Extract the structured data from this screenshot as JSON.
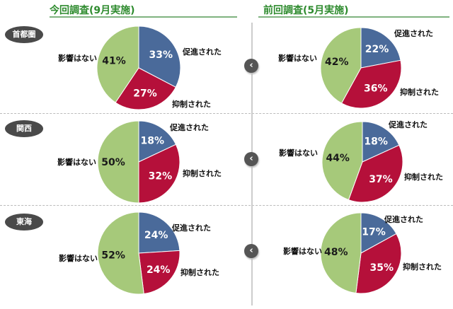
{
  "headers": {
    "current": "今回調査(9月実施)",
    "previous": "前回調査(5月実施)"
  },
  "regions": [
    "首都圏",
    "関西",
    "東海"
  ],
  "nav": {
    "chevron_icon": "chevron-left-icon"
  },
  "colors": {
    "promoted": "#4a6a9a",
    "suppressed": "#b5103a",
    "no_effect": "#a6c97a"
  },
  "chart_data": [
    {
      "type": "pie",
      "panel": "今回調査(9月実施)",
      "region": "首都圏",
      "labels": [
        "促進された",
        "抑制された",
        "影響はない"
      ],
      "values": [
        33,
        27,
        41
      ],
      "value_labels": [
        "33%",
        "27%",
        "41%"
      ]
    },
    {
      "type": "pie",
      "panel": "前回調査(5月実施)",
      "region": "首都圏",
      "labels": [
        "促進された",
        "抑制された",
        "影響はない"
      ],
      "values": [
        22,
        36,
        42
      ],
      "value_labels": [
        "22%",
        "36%",
        "42%"
      ]
    },
    {
      "type": "pie",
      "panel": "今回調査(9月実施)",
      "region": "関西",
      "labels": [
        "促進された",
        "抑制された",
        "影響はない"
      ],
      "values": [
        18,
        32,
        50
      ],
      "value_labels": [
        "18%",
        "32%",
        "50%"
      ]
    },
    {
      "type": "pie",
      "panel": "前回調査(5月実施)",
      "region": "関西",
      "labels": [
        "促進された",
        "抑制された",
        "影響はない"
      ],
      "values": [
        18,
        37,
        44
      ],
      "value_labels": [
        "18%",
        "37%",
        "44%"
      ]
    },
    {
      "type": "pie",
      "panel": "今回調査(9月実施)",
      "region": "東海",
      "labels": [
        "促進された",
        "抑制された",
        "影響はない"
      ],
      "values": [
        24,
        24,
        52
      ],
      "value_labels": [
        "24%",
        "24%",
        "52%"
      ]
    },
    {
      "type": "pie",
      "panel": "前回調査(5月実施)",
      "region": "東海",
      "labels": [
        "促進された",
        "抑制された",
        "影響はない"
      ],
      "values": [
        17,
        35,
        48
      ],
      "value_labels": [
        "17%",
        "35%",
        "48%"
      ]
    }
  ]
}
